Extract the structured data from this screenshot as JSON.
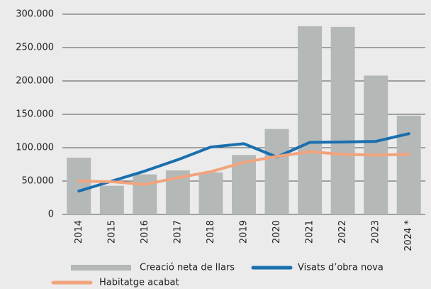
{
  "chart_data": {
    "type": "bar_line",
    "categories": [
      "2014",
      "2015",
      "2016",
      "2017",
      "2018",
      "2019",
      "2020",
      "2021",
      "2022",
      "2023",
      "2024 *"
    ],
    "series": [
      {
        "name": "Creació neta de llars",
        "type": "bar",
        "color": "#b4b9b8",
        "values": [
          85000,
          43000,
          60000,
          66000,
          63000,
          89000,
          128000,
          282000,
          281000,
          208000,
          148000
        ]
      },
      {
        "name": "Visats d’obra nova",
        "type": "line",
        "color": "#1a6fae",
        "values": [
          35000,
          50000,
          65000,
          82000,
          101000,
          106000,
          86000,
          108000,
          108500,
          109500,
          121000
        ]
      },
      {
        "name": "Habitatge acabat",
        "type": "line",
        "color": "#f2a37c",
        "values": [
          50000,
          49000,
          45000,
          55000,
          64000,
          78000,
          87000,
          94000,
          90000,
          89000,
          90000
        ]
      }
    ],
    "ylim": [
      0,
      300000
    ],
    "yticks": [
      0,
      {
        "value": 50000,
        "label": "50.000"
      },
      {
        "value": 100000,
        "label": "100.000"
      },
      {
        "value": 150000,
        "label": "150.000"
      },
      {
        "value": 200000,
        "label": "200.000"
      },
      {
        "value": 250000,
        "label": "250.000"
      },
      {
        "value": 300000,
        "label": "300.000"
      }
    ],
    "grid": true
  }
}
